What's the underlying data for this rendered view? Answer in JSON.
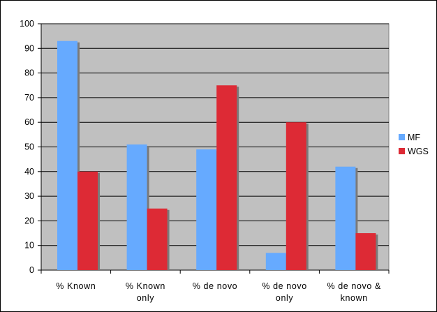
{
  "chart_data": {
    "type": "bar",
    "categories": [
      [
        "% Known"
      ],
      [
        "% Known",
        "only"
      ],
      [
        "% de novo"
      ],
      [
        "% de novo",
        "only"
      ],
      [
        "% de novo &",
        "known"
      ]
    ],
    "series": [
      {
        "name": "MF",
        "values": [
          93,
          51,
          49,
          7,
          42
        ],
        "color": "#66aaff"
      },
      {
        "name": "WGS",
        "values": [
          40,
          25,
          75,
          60,
          15
        ],
        "color": "#dd2a35"
      }
    ],
    "ylim": [
      0,
      100
    ],
    "yticks": [
      0,
      10,
      20,
      30,
      40,
      50,
      60,
      70,
      80,
      90,
      100
    ],
    "grid": true,
    "plot_background": "#c0c0c0",
    "legend_position": "right"
  }
}
